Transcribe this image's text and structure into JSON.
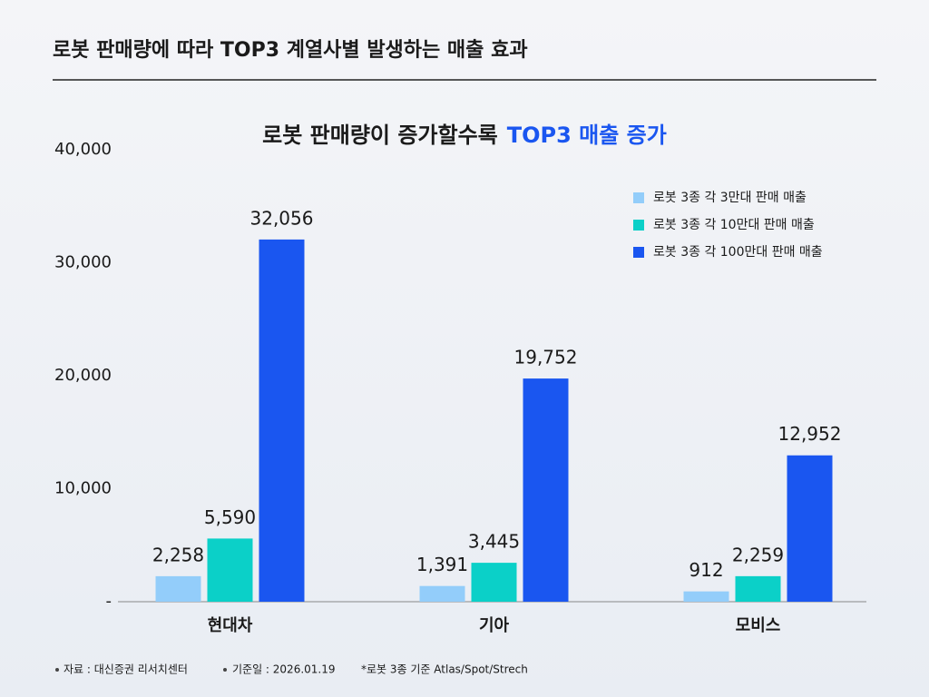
{
  "header": {
    "title": "로봇 판매량에 따라 TOP3 계열사별 발생하는 매출 효과"
  },
  "chart_data": {
    "type": "bar",
    "title": "로봇 판매량이 증가할수록",
    "title_emphasis": "TOP3 매출 증가",
    "categories": [
      "현대차",
      "기아",
      "모비스"
    ],
    "series": [
      {
        "name": "로봇 3종 각 3만대 판매 매출",
        "color": "#93cdfa",
        "values": [
          2258,
          1391,
          912
        ],
        "value_labels": [
          "2,258",
          "1,391",
          "912"
        ]
      },
      {
        "name": "로봇 3종 각 10만대 판매 매출",
        "color": "#0bd0c8",
        "values": [
          5590,
          3445,
          2259
        ],
        "value_labels": [
          "5,590",
          "3,445",
          "2,259"
        ]
      },
      {
        "name": "로봇 3종 각 100만대 판매 매출",
        "color": "#1a56f0",
        "values": [
          32056,
          19752,
          12952
        ],
        "value_labels": [
          "32,056",
          "19,752",
          "12,952"
        ]
      }
    ],
    "ylim": [
      0,
      40000
    ],
    "yticks": [
      {
        "value": 0,
        "label": "-"
      },
      {
        "value": 10000,
        "label": "10,000"
      },
      {
        "value": 20000,
        "label": "20,000"
      },
      {
        "value": 30000,
        "label": "30,000"
      },
      {
        "value": 40000,
        "label": "40,000"
      }
    ],
    "legend": "upper right"
  },
  "footnotes": [
    "자료 : 대신증권 리서치센터",
    "기준일 : 2026.01.19",
    "*로봇 3종 기준 Atlas/Spot/Strech"
  ]
}
